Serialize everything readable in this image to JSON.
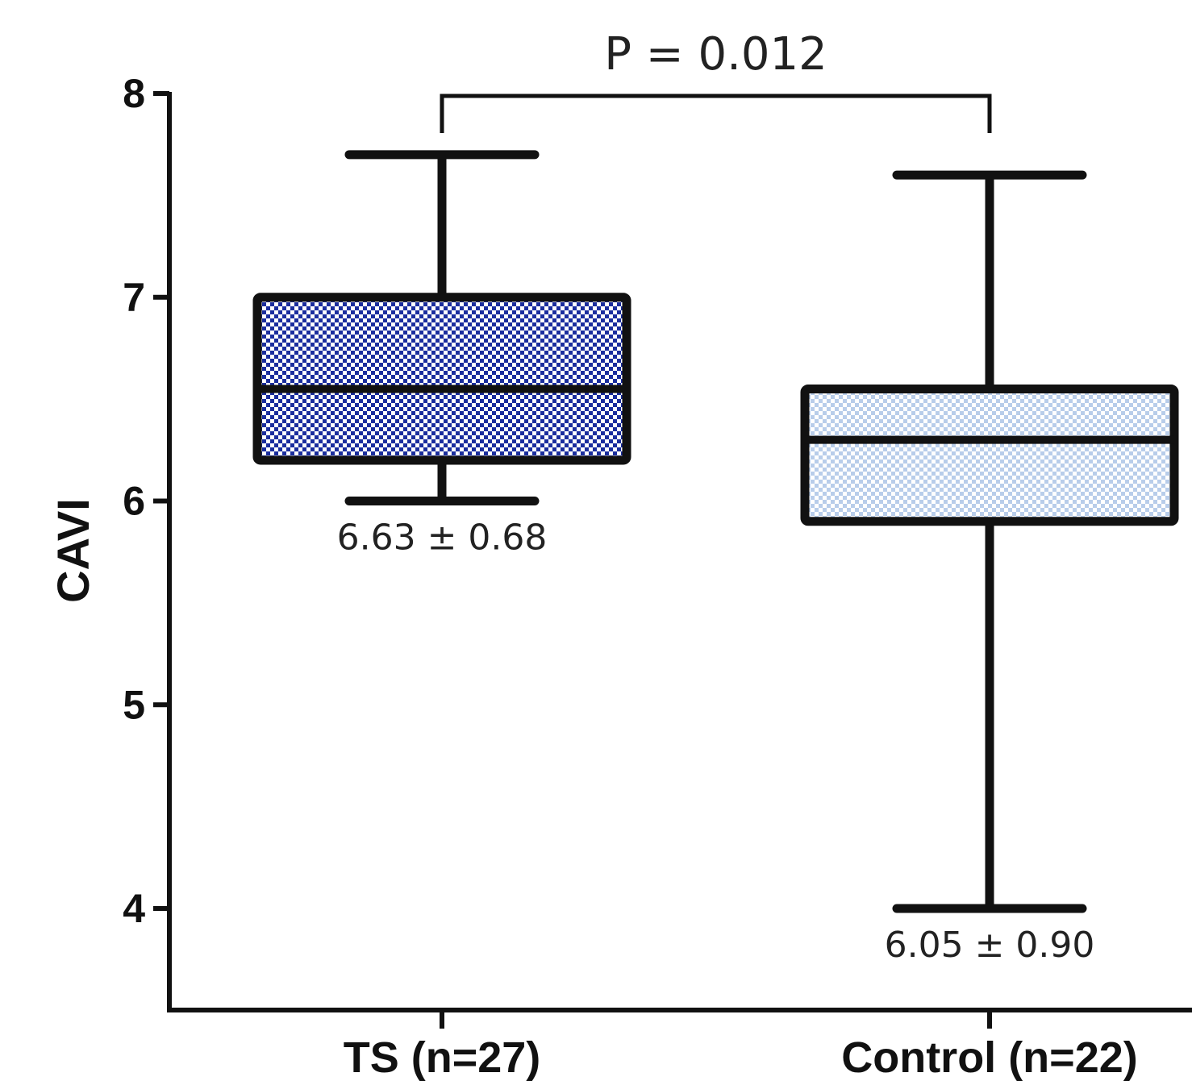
{
  "chart_data": {
    "type": "box",
    "ylabel": "CAVI",
    "ylim": [
      3.5,
      8
    ],
    "yticks": [
      4,
      5,
      6,
      7,
      8
    ],
    "categories": [
      "TS (n=27)",
      "Control (n=22)"
    ],
    "boxes": [
      {
        "category": "TS (n=27)",
        "whisker_low": 6.0,
        "q1": 6.2,
        "median": 6.55,
        "q3": 7.0,
        "whisker_high": 7.7,
        "annotation": "6.63 ± 0.68",
        "color": "#1a2d9e",
        "pattern": "dark"
      },
      {
        "category": "Control (n=22)",
        "whisker_low": 4.0,
        "q1": 5.9,
        "median": 6.3,
        "q3": 6.55,
        "whisker_high": 7.6,
        "annotation": "6.05 ± 0.90",
        "color": "#a9c3e8",
        "pattern": "light"
      }
    ],
    "comparison": {
      "label": "P = 0.012",
      "between": [
        0,
        1
      ]
    }
  }
}
